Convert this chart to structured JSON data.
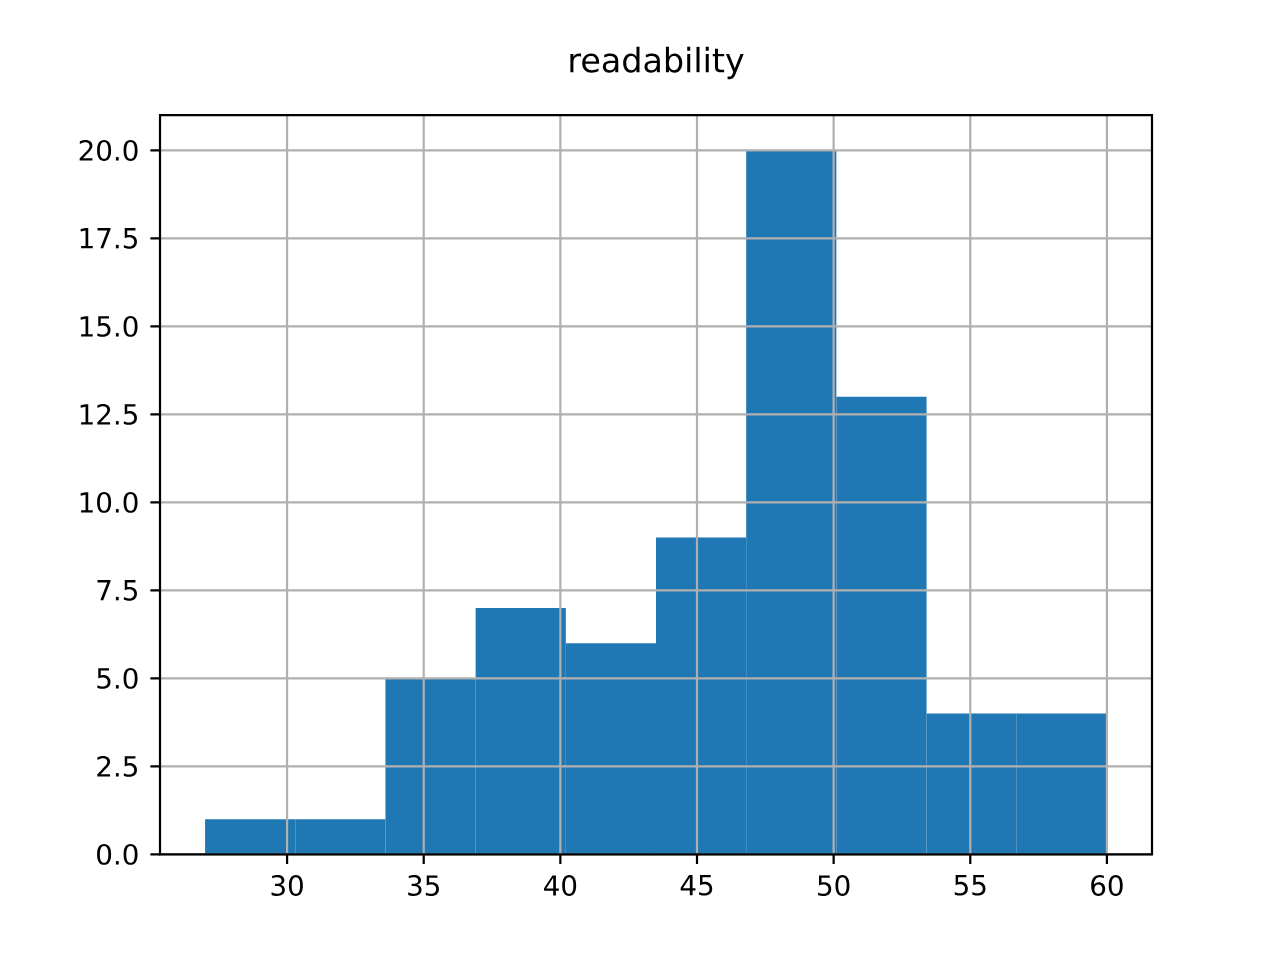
{
  "chart_data": {
    "type": "histogram",
    "title": "readability",
    "bins": [
      27,
      30.3,
      33.6,
      36.9,
      40.2,
      43.5,
      46.8,
      50.1,
      53.4,
      56.7,
      60
    ],
    "values": [
      1,
      1,
      5,
      7,
      6,
      9,
      20,
      13,
      4,
      4
    ],
    "color": "#1f77b4",
    "xlim": [
      25.35,
      61.65
    ],
    "ylim": [
      0,
      21
    ],
    "xticks": [
      30,
      35,
      40,
      45,
      50,
      55,
      60
    ],
    "yticks": [
      {
        "value": 0,
        "label": "0.0"
      },
      {
        "value": 2.5,
        "label": "2.5"
      },
      {
        "value": 5,
        "label": "5.0"
      },
      {
        "value": 7.5,
        "label": "7.5"
      },
      {
        "value": 10,
        "label": "10.0"
      },
      {
        "value": 12.5,
        "label": "12.5"
      },
      {
        "value": 15,
        "label": "15.0"
      },
      {
        "value": 17.5,
        "label": "17.5"
      },
      {
        "value": 20,
        "label": "20.0"
      }
    ],
    "grid": true
  }
}
